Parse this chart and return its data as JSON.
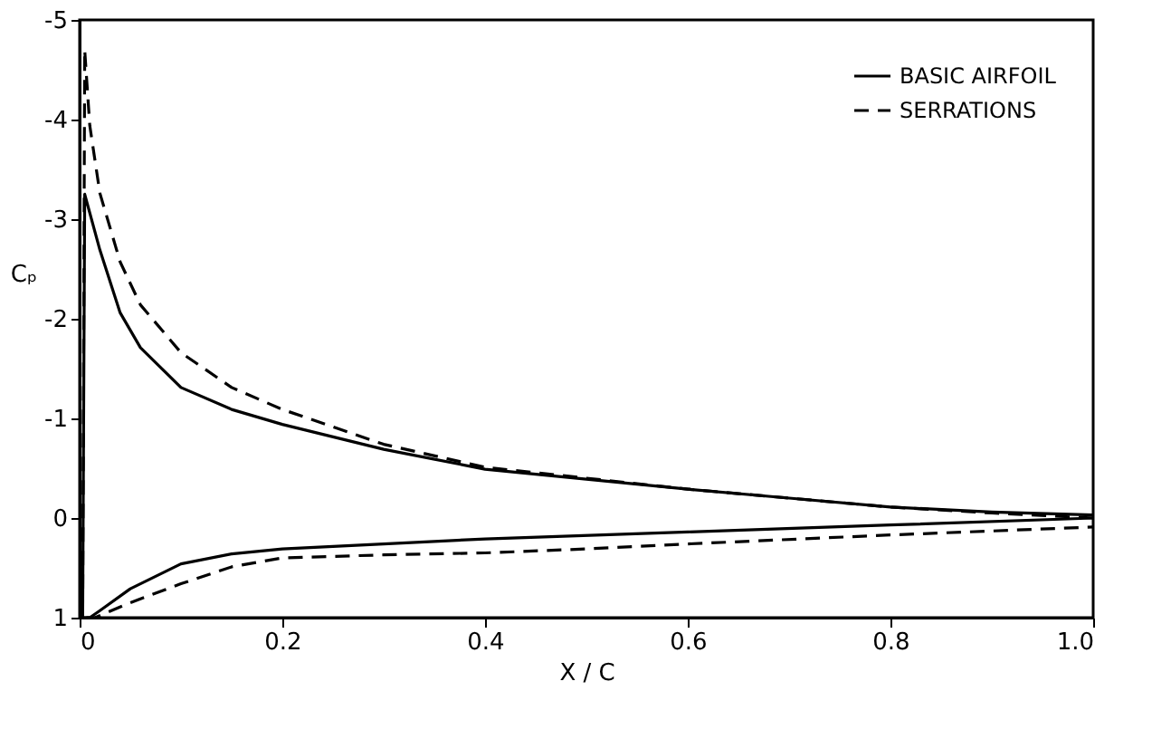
{
  "chart_data": {
    "type": "line",
    "xlabel": "X / C",
    "ylabel": "Cₚ",
    "xlim": [
      0,
      1
    ],
    "xticks": [
      0,
      0.2,
      0.4,
      0.6,
      0.8,
      {
        "value": 1,
        "label": "1.0"
      }
    ],
    "ylim": [
      1,
      -5
    ],
    "yticks": [
      -5,
      -4,
      -3,
      -2,
      -1,
      0,
      1
    ],
    "grid": false,
    "legend": "top right",
    "marker": "none",
    "series": [
      {
        "name": "BASIC AIRFOIL",
        "color": "#000000",
        "line_style": "solid",
        "x": [
          1.0,
          0.9,
          0.8,
          0.7,
          0.6,
          0.5,
          0.4,
          0.3,
          0.2,
          0.15,
          0.1,
          0.06,
          0.04,
          0.02,
          0.005,
          0.003,
          0.01,
          0.02,
          0.05,
          0.1,
          0.15,
          0.2,
          0.3,
          0.4,
          0.6,
          0.8,
          1.0
        ],
        "values": [
          -0.03,
          -0.06,
          -0.11,
          -0.2,
          -0.29,
          -0.39,
          -0.49,
          -0.69,
          -0.94,
          -1.09,
          -1.31,
          -1.71,
          -2.06,
          -2.69,
          -3.25,
          1.0,
          1.0,
          0.93,
          0.71,
          0.46,
          0.36,
          0.31,
          0.26,
          0.21,
          0.14,
          0.07,
          0.0
        ]
      },
      {
        "name": "SERRATIONS",
        "color": "#000000",
        "line_style": "dashed",
        "x": [
          1.0,
          0.9,
          0.8,
          0.7,
          0.6,
          0.5,
          0.4,
          0.3,
          0.2,
          0.15,
          0.1,
          0.06,
          0.04,
          0.02,
          0.01,
          0.005,
          0.003,
          0.015,
          0.05,
          0.1,
          0.15,
          0.2,
          0.3,
          0.4,
          0.5,
          0.6,
          0.8,
          1.0
        ],
        "values": [
          0.0,
          -0.05,
          -0.11,
          -0.2,
          -0.29,
          -0.4,
          -0.51,
          -0.74,
          -1.09,
          -1.31,
          -1.66,
          -2.14,
          -2.57,
          -3.26,
          -3.94,
          -4.7,
          1.0,
          1.0,
          0.85,
          0.66,
          0.49,
          0.4,
          0.37,
          0.35,
          0.31,
          0.26,
          0.17,
          0.09
        ]
      }
    ]
  }
}
